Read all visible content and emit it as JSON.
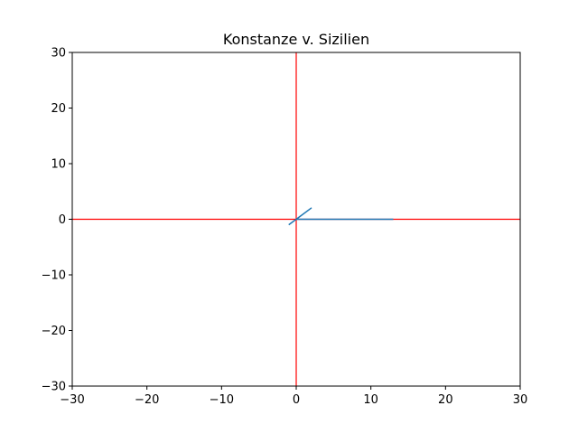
{
  "chart_data": {
    "type": "line",
    "title": "Konstanze v. Sizilien",
    "xlabel": "",
    "ylabel": "",
    "xlim": [
      -30,
      30
    ],
    "ylim": [
      -30,
      30
    ],
    "xticks": [
      -30,
      -20,
      -10,
      0,
      10,
      20,
      30
    ],
    "yticks": [
      -30,
      -20,
      -10,
      0,
      10,
      20,
      30
    ],
    "xtick_labels": [
      "−30",
      "−20",
      "−10",
      "0",
      "10",
      "20",
      "30"
    ],
    "ytick_labels": [
      "−30",
      "−20",
      "−10",
      "0",
      "10",
      "20",
      "30"
    ],
    "grid": false,
    "reference_lines": [
      {
        "orientation": "horizontal",
        "value": 0,
        "color": "#ff0000"
      },
      {
        "orientation": "vertical",
        "value": 0,
        "color": "#ff0000"
      }
    ],
    "series": [
      {
        "color": "#1f77b4",
        "x": [
          -1,
          2,
          0,
          13
        ],
        "y": [
          -1,
          2,
          0,
          0
        ]
      }
    ]
  }
}
